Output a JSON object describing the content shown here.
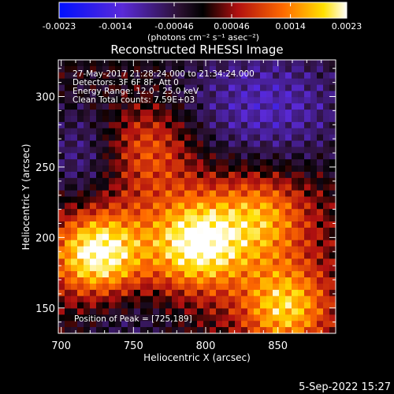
{
  "colorbar": {
    "tick_labels": [
      "-0.0023",
      "-0.0014",
      "-0.00046",
      "0.00046",
      "0.0014",
      "0.0023"
    ],
    "tick_values": [
      -0.0023,
      -0.0014,
      -0.00046,
      0.00046,
      0.0014,
      0.0023
    ],
    "range": [
      -0.0023,
      0.0023
    ],
    "unit_label": "(photons cm⁻² s⁻¹ asec⁻²)"
  },
  "chart_data": {
    "type": "heatmap",
    "title": "Reconstructed RHESSI Image",
    "xlabel": "Heliocentric X (arcsec)",
    "ylabel": "Heliocentric Y (arcsec)",
    "xlim": [
      698,
      890
    ],
    "ylim": [
      132,
      326
    ],
    "xticks": [
      700,
      750,
      800,
      850
    ],
    "yticks": [
      150,
      200,
      250,
      300
    ],
    "x_tick_labels": [
      "700",
      "750",
      "800",
      "850"
    ],
    "y_tick_labels": [
      "150",
      "200",
      "250",
      "300"
    ],
    "colormap": "blue-purple-black-red-yellow-white",
    "grid": false,
    "hotspots": [
      {
        "x": 725,
        "y": 189,
        "intensity": 0.0023
      },
      {
        "x": 795,
        "y": 195,
        "intensity": 0.002
      },
      {
        "x": 855,
        "y": 150,
        "intensity": 0.0018
      },
      {
        "x": 760,
        "y": 265,
        "intensity": 0.001
      },
      {
        "x": 840,
        "y": 215,
        "intensity": 0.0012
      }
    ],
    "annotations": [
      "27-May-2017 21:28:24.000 to 21:34:24.000",
      "Detectors: 3F 6F 8F, Att 0",
      "Energy Range: 12.0 - 25.0 keV",
      "Clean    Total counts: 7.59E+03",
      "Position of Peak = [725,189]"
    ]
  },
  "footer": {
    "timestamp": "5-Sep-2022 15:27"
  },
  "colors": {
    "background": "#000000",
    "text": "#ffffff"
  }
}
